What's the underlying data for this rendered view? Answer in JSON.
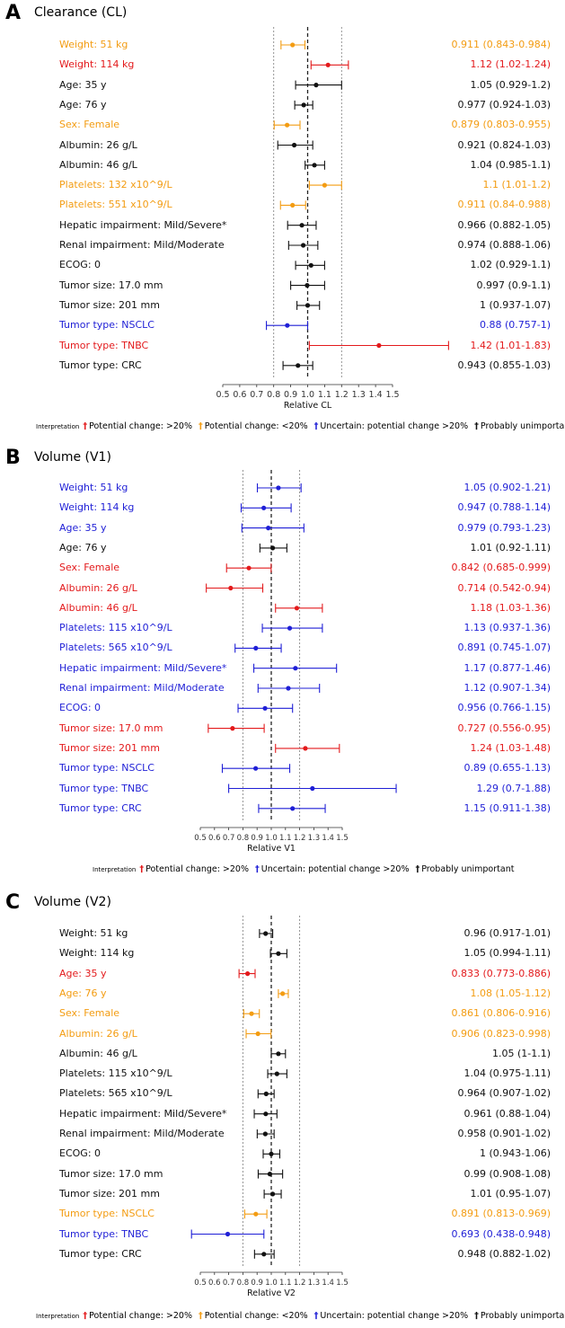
{
  "colors": {
    "red": "#e31a1c",
    "orange": "#f39c12",
    "blue": "#1f1fd6",
    "black": "#111111"
  },
  "legend": {
    "title": "Interpretation",
    "items": [
      {
        "key": "red",
        "label": "Potential change: >20%"
      },
      {
        "key": "orange",
        "label": "Potential change: <20%"
      },
      {
        "key": "blue",
        "label": "Uncertain: potential change >20%"
      },
      {
        "key": "black",
        "label": "Probably unimportant"
      }
    ]
  },
  "chart_data": [
    {
      "panel": "A",
      "type": "forest",
      "title": "Clearance (CL)",
      "xlabel": "Relative CL",
      "xlim": [
        0.5,
        1.5
      ],
      "ticks": [
        "0.5",
        "0.6",
        "0.7",
        "0.8",
        "0.9",
        "1.0",
        "1.1",
        "1.2",
        "1.3",
        "1.4",
        "1.5"
      ],
      "reference_lines": [
        0.8,
        1.0,
        1.2
      ],
      "legend_keys": [
        "red",
        "orange",
        "blue",
        "black"
      ],
      "rows": [
        {
          "label": "Weight: 51 kg",
          "est": 0.911,
          "lo": 0.843,
          "hi": 0.984,
          "text": "0.911 (0.843-0.984)",
          "color": "orange"
        },
        {
          "label": "Weight: 114 kg",
          "est": 1.12,
          "lo": 1.02,
          "hi": 1.24,
          "text": "1.12 (1.02-1.24)",
          "color": "red"
        },
        {
          "label": "Age: 35 y",
          "est": 1.05,
          "lo": 0.929,
          "hi": 1.2,
          "text": "1.05 (0.929-1.2)",
          "color": "black"
        },
        {
          "label": "Age: 76 y",
          "est": 0.977,
          "lo": 0.924,
          "hi": 1.03,
          "text": "0.977 (0.924-1.03)",
          "color": "black"
        },
        {
          "label": "Sex: Female",
          "est": 0.879,
          "lo": 0.803,
          "hi": 0.955,
          "text": "0.879 (0.803-0.955)",
          "color": "orange"
        },
        {
          "label": "Albumin: 26 g/L",
          "est": 0.921,
          "lo": 0.824,
          "hi": 1.03,
          "text": "0.921 (0.824-1.03)",
          "color": "black"
        },
        {
          "label": "Albumin: 46 g/L",
          "est": 1.04,
          "lo": 0.985,
          "hi": 1.1,
          "text": "1.04 (0.985-1.1)",
          "color": "black"
        },
        {
          "label": "Platelets: 132 x10^9/L",
          "est": 1.1,
          "lo": 1.01,
          "hi": 1.2,
          "text": "1.1 (1.01-1.2)",
          "color": "orange"
        },
        {
          "label": "Platelets: 551 x10^9/L",
          "est": 0.911,
          "lo": 0.84,
          "hi": 0.988,
          "text": "0.911 (0.84-0.988)",
          "color": "orange"
        },
        {
          "label": "Hepatic impairment: Mild/Severe*",
          "est": 0.966,
          "lo": 0.882,
          "hi": 1.05,
          "text": "0.966 (0.882-1.05)",
          "color": "black"
        },
        {
          "label": "Renal impairment: Mild/Moderate",
          "est": 0.974,
          "lo": 0.888,
          "hi": 1.06,
          "text": "0.974 (0.888-1.06)",
          "color": "black"
        },
        {
          "label": "ECOG: 0",
          "est": 1.02,
          "lo": 0.929,
          "hi": 1.1,
          "text": "1.02 (0.929-1.1)",
          "color": "black"
        },
        {
          "label": "Tumor size: 17.0 mm",
          "est": 0.997,
          "lo": 0.9,
          "hi": 1.1,
          "text": "0.997 (0.9-1.1)",
          "color": "black"
        },
        {
          "label": "Tumor size: 201 mm",
          "est": 1.0,
          "lo": 0.937,
          "hi": 1.07,
          "text": "1 (0.937-1.07)",
          "color": "black"
        },
        {
          "label": "Tumor type: NSCLC",
          "est": 0.88,
          "lo": 0.757,
          "hi": 1.0,
          "text": "0.88 (0.757-1)",
          "color": "blue"
        },
        {
          "label": "Tumor type: TNBC",
          "est": 1.42,
          "lo": 1.01,
          "hi": 1.83,
          "text": "1.42 (1.01-1.83)",
          "color": "red"
        },
        {
          "label": "Tumor type: CRC",
          "est": 0.943,
          "lo": 0.855,
          "hi": 1.03,
          "text": "0.943 (0.855-1.03)",
          "color": "black"
        }
      ]
    },
    {
      "panel": "B",
      "type": "forest",
      "title": "Volume (V1)",
      "xlabel": "Relative V1",
      "xlim": [
        0.5,
        1.5
      ],
      "ticks": [
        "0.5",
        "0.6",
        "0.7",
        "0.8",
        "0.9",
        "1.0",
        "1.1",
        "1.2",
        "1.3",
        "1.4",
        "1.5"
      ],
      "reference_lines": [
        0.8,
        1.0,
        1.2
      ],
      "legend_keys": [
        "red",
        "blue",
        "black"
      ],
      "rows": [
        {
          "label": "Weight: 51 kg",
          "est": 1.05,
          "lo": 0.902,
          "hi": 1.21,
          "text": "1.05 (0.902-1.21)",
          "color": "blue"
        },
        {
          "label": "Weight: 114 kg",
          "est": 0.947,
          "lo": 0.788,
          "hi": 1.14,
          "text": "0.947 (0.788-1.14)",
          "color": "blue"
        },
        {
          "label": "Age: 35 y",
          "est": 0.979,
          "lo": 0.793,
          "hi": 1.23,
          "text": "0.979 (0.793-1.23)",
          "color": "blue"
        },
        {
          "label": "Age: 76 y",
          "est": 1.01,
          "lo": 0.92,
          "hi": 1.11,
          "text": "1.01 (0.92-1.11)",
          "color": "black"
        },
        {
          "label": "Sex: Female",
          "est": 0.842,
          "lo": 0.685,
          "hi": 0.999,
          "text": "0.842 (0.685-0.999)",
          "color": "red"
        },
        {
          "label": "Albumin: 26 g/L",
          "est": 0.714,
          "lo": 0.542,
          "hi": 0.94,
          "text": "0.714 (0.542-0.94)",
          "color": "red"
        },
        {
          "label": "Albumin: 46 g/L",
          "est": 1.18,
          "lo": 1.03,
          "hi": 1.36,
          "text": "1.18 (1.03-1.36)",
          "color": "red"
        },
        {
          "label": "Platelets: 115 x10^9/L",
          "est": 1.13,
          "lo": 0.937,
          "hi": 1.36,
          "text": "1.13 (0.937-1.36)",
          "color": "blue"
        },
        {
          "label": "Platelets: 565 x10^9/L",
          "est": 0.891,
          "lo": 0.745,
          "hi": 1.07,
          "text": "0.891 (0.745-1.07)",
          "color": "blue"
        },
        {
          "label": "Hepatic impairment: Mild/Severe*",
          "est": 1.17,
          "lo": 0.877,
          "hi": 1.46,
          "text": "1.17 (0.877-1.46)",
          "color": "blue"
        },
        {
          "label": "Renal impairment: Mild/Moderate",
          "est": 1.12,
          "lo": 0.907,
          "hi": 1.34,
          "text": "1.12 (0.907-1.34)",
          "color": "blue"
        },
        {
          "label": "ECOG: 0",
          "est": 0.956,
          "lo": 0.766,
          "hi": 1.15,
          "text": "0.956 (0.766-1.15)",
          "color": "blue"
        },
        {
          "label": "Tumor size: 17.0 mm",
          "est": 0.727,
          "lo": 0.556,
          "hi": 0.95,
          "text": "0.727 (0.556-0.95)",
          "color": "red"
        },
        {
          "label": "Tumor size: 201 mm",
          "est": 1.24,
          "lo": 1.03,
          "hi": 1.48,
          "text": "1.24 (1.03-1.48)",
          "color": "red"
        },
        {
          "label": "Tumor type: NSCLC",
          "est": 0.89,
          "lo": 0.655,
          "hi": 1.13,
          "text": "0.89 (0.655-1.13)",
          "color": "blue"
        },
        {
          "label": "Tumor type: TNBC",
          "est": 1.29,
          "lo": 0.7,
          "hi": 1.88,
          "text": "1.29 (0.7-1.88)",
          "color": "blue"
        },
        {
          "label": "Tumor type: CRC",
          "est": 1.15,
          "lo": 0.911,
          "hi": 1.38,
          "text": "1.15 (0.911-1.38)",
          "color": "blue"
        }
      ]
    },
    {
      "panel": "C",
      "type": "forest",
      "title": "Volume (V2)",
      "xlabel": "Relative V2",
      "xlim": [
        0.5,
        1.5
      ],
      "ticks": [
        "0.5",
        "0.6",
        "0.7",
        "0.8",
        "0.9",
        "1.0",
        "1.1",
        "1.2",
        "1.3",
        "1.4",
        "1.5"
      ],
      "reference_lines": [
        0.8,
        1.0,
        1.2
      ],
      "legend_keys": [
        "red",
        "orange",
        "blue",
        "black"
      ],
      "rows": [
        {
          "label": "Weight: 51 kg",
          "est": 0.96,
          "lo": 0.917,
          "hi": 1.01,
          "text": "0.96 (0.917-1.01)",
          "color": "black"
        },
        {
          "label": "Weight: 114 kg",
          "est": 1.05,
          "lo": 0.994,
          "hi": 1.11,
          "text": "1.05 (0.994-1.11)",
          "color": "black"
        },
        {
          "label": "Age: 35 y",
          "est": 0.833,
          "lo": 0.773,
          "hi": 0.886,
          "text": "0.833 (0.773-0.886)",
          "color": "red"
        },
        {
          "label": "Age: 76 y",
          "est": 1.08,
          "lo": 1.05,
          "hi": 1.12,
          "text": "1.08 (1.05-1.12)",
          "color": "orange"
        },
        {
          "label": "Sex: Female",
          "est": 0.861,
          "lo": 0.806,
          "hi": 0.916,
          "text": "0.861 (0.806-0.916)",
          "color": "orange"
        },
        {
          "label": "Albumin: 26 g/L",
          "est": 0.906,
          "lo": 0.823,
          "hi": 0.998,
          "text": "0.906 (0.823-0.998)",
          "color": "orange"
        },
        {
          "label": "Albumin: 46 g/L",
          "est": 1.05,
          "lo": 1.0,
          "hi": 1.1,
          "text": "1.05 (1-1.1)",
          "color": "black"
        },
        {
          "label": "Platelets: 115 x10^9/L",
          "est": 1.04,
          "lo": 0.975,
          "hi": 1.11,
          "text": "1.04 (0.975-1.11)",
          "color": "black"
        },
        {
          "label": "Platelets: 565 x10^9/L",
          "est": 0.964,
          "lo": 0.907,
          "hi": 1.02,
          "text": "0.964 (0.907-1.02)",
          "color": "black"
        },
        {
          "label": "Hepatic impairment: Mild/Severe*",
          "est": 0.961,
          "lo": 0.88,
          "hi": 1.04,
          "text": "0.961 (0.88-1.04)",
          "color": "black"
        },
        {
          "label": "Renal impairment: Mild/Moderate",
          "est": 0.958,
          "lo": 0.901,
          "hi": 1.02,
          "text": "0.958 (0.901-1.02)",
          "color": "black"
        },
        {
          "label": "ECOG: 0",
          "est": 1.0,
          "lo": 0.943,
          "hi": 1.06,
          "text": "1 (0.943-1.06)",
          "color": "black"
        },
        {
          "label": "Tumor size: 17.0 mm",
          "est": 0.99,
          "lo": 0.908,
          "hi": 1.08,
          "text": "0.99 (0.908-1.08)",
          "color": "black"
        },
        {
          "label": "Tumor size: 201 mm",
          "est": 1.01,
          "lo": 0.95,
          "hi": 1.07,
          "text": "1.01 (0.95-1.07)",
          "color": "black"
        },
        {
          "label": "Tumor type: NSCLC",
          "est": 0.891,
          "lo": 0.813,
          "hi": 0.969,
          "text": "0.891 (0.813-0.969)",
          "color": "orange"
        },
        {
          "label": "Tumor type: TNBC",
          "est": 0.693,
          "lo": 0.438,
          "hi": 0.948,
          "text": "0.693 (0.438-0.948)",
          "color": "blue"
        },
        {
          "label": "Tumor type: CRC",
          "est": 0.948,
          "lo": 0.882,
          "hi": 1.02,
          "text": "0.948 (0.882-1.02)",
          "color": "black"
        }
      ]
    }
  ]
}
